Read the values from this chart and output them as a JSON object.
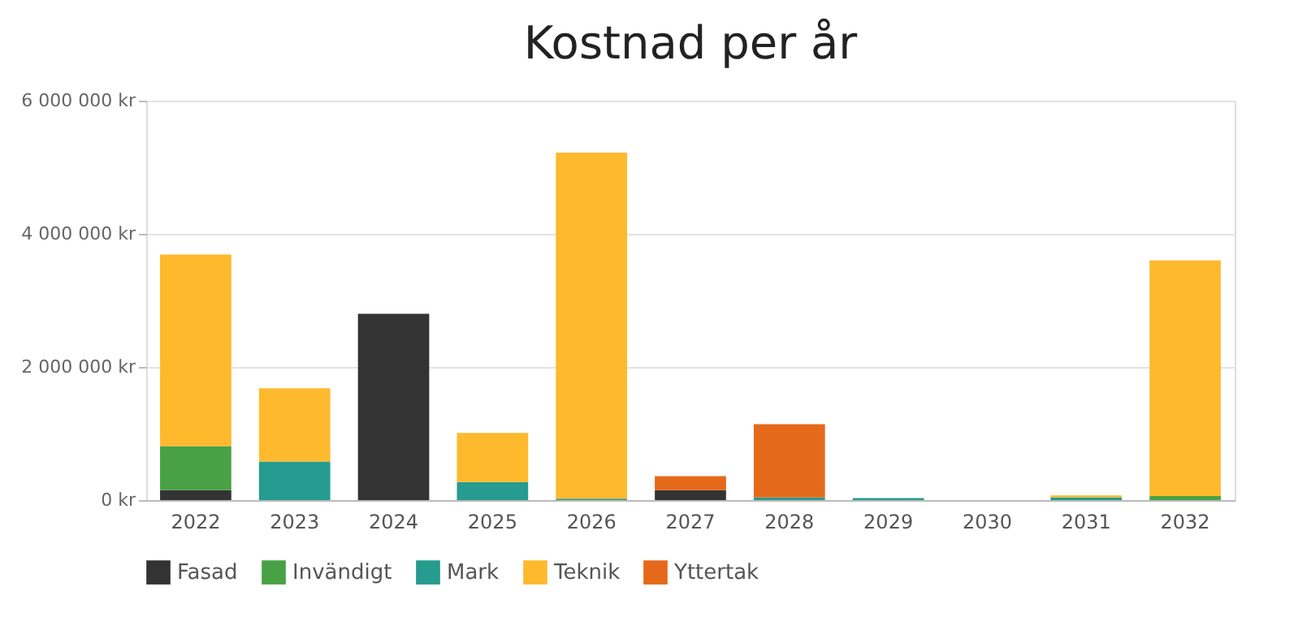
{
  "chart_data": {
    "type": "bar",
    "title": "Kostnad per år",
    "stacked": true,
    "categories": [
      "2022",
      "2023",
      "2024",
      "2025",
      "2026",
      "2027",
      "2028",
      "2029",
      "2030",
      "2031",
      "2032"
    ],
    "series": [
      {
        "name": "Fasad",
        "color": "#333333",
        "values": [
          150000,
          0,
          2800000,
          0,
          0,
          150000,
          0,
          0,
          0,
          0,
          0
        ]
      },
      {
        "name": "Invändigt",
        "color": "#48a245",
        "values": [
          660000,
          0,
          0,
          0,
          0,
          0,
          0,
          0,
          0,
          0,
          60000
        ]
      },
      {
        "name": "Mark",
        "color": "#269b8f",
        "values": [
          0,
          580000,
          0,
          270000,
          20000,
          0,
          40000,
          30000,
          0,
          40000,
          0
        ]
      },
      {
        "name": "Teknik",
        "color": "#ffb92d",
        "values": [
          2880000,
          1100000,
          0,
          740000,
          5200000,
          0,
          0,
          0,
          0,
          30000,
          3540000
        ]
      },
      {
        "name": "Yttertak",
        "color": "#e5691b",
        "values": [
          0,
          0,
          0,
          0,
          0,
          210000,
          1100000,
          0,
          0,
          0,
          0
        ]
      }
    ],
    "ylim": [
      0,
      6000000
    ],
    "yticks": [
      {
        "value": 0,
        "label": "0 kr"
      },
      {
        "value": 2000000,
        "label": "2 000 000 kr"
      },
      {
        "value": 4000000,
        "label": "4 000 000 kr"
      },
      {
        "value": 6000000,
        "label": "6 000 000 kr"
      }
    ],
    "grid": "y",
    "legend": "bottom"
  }
}
